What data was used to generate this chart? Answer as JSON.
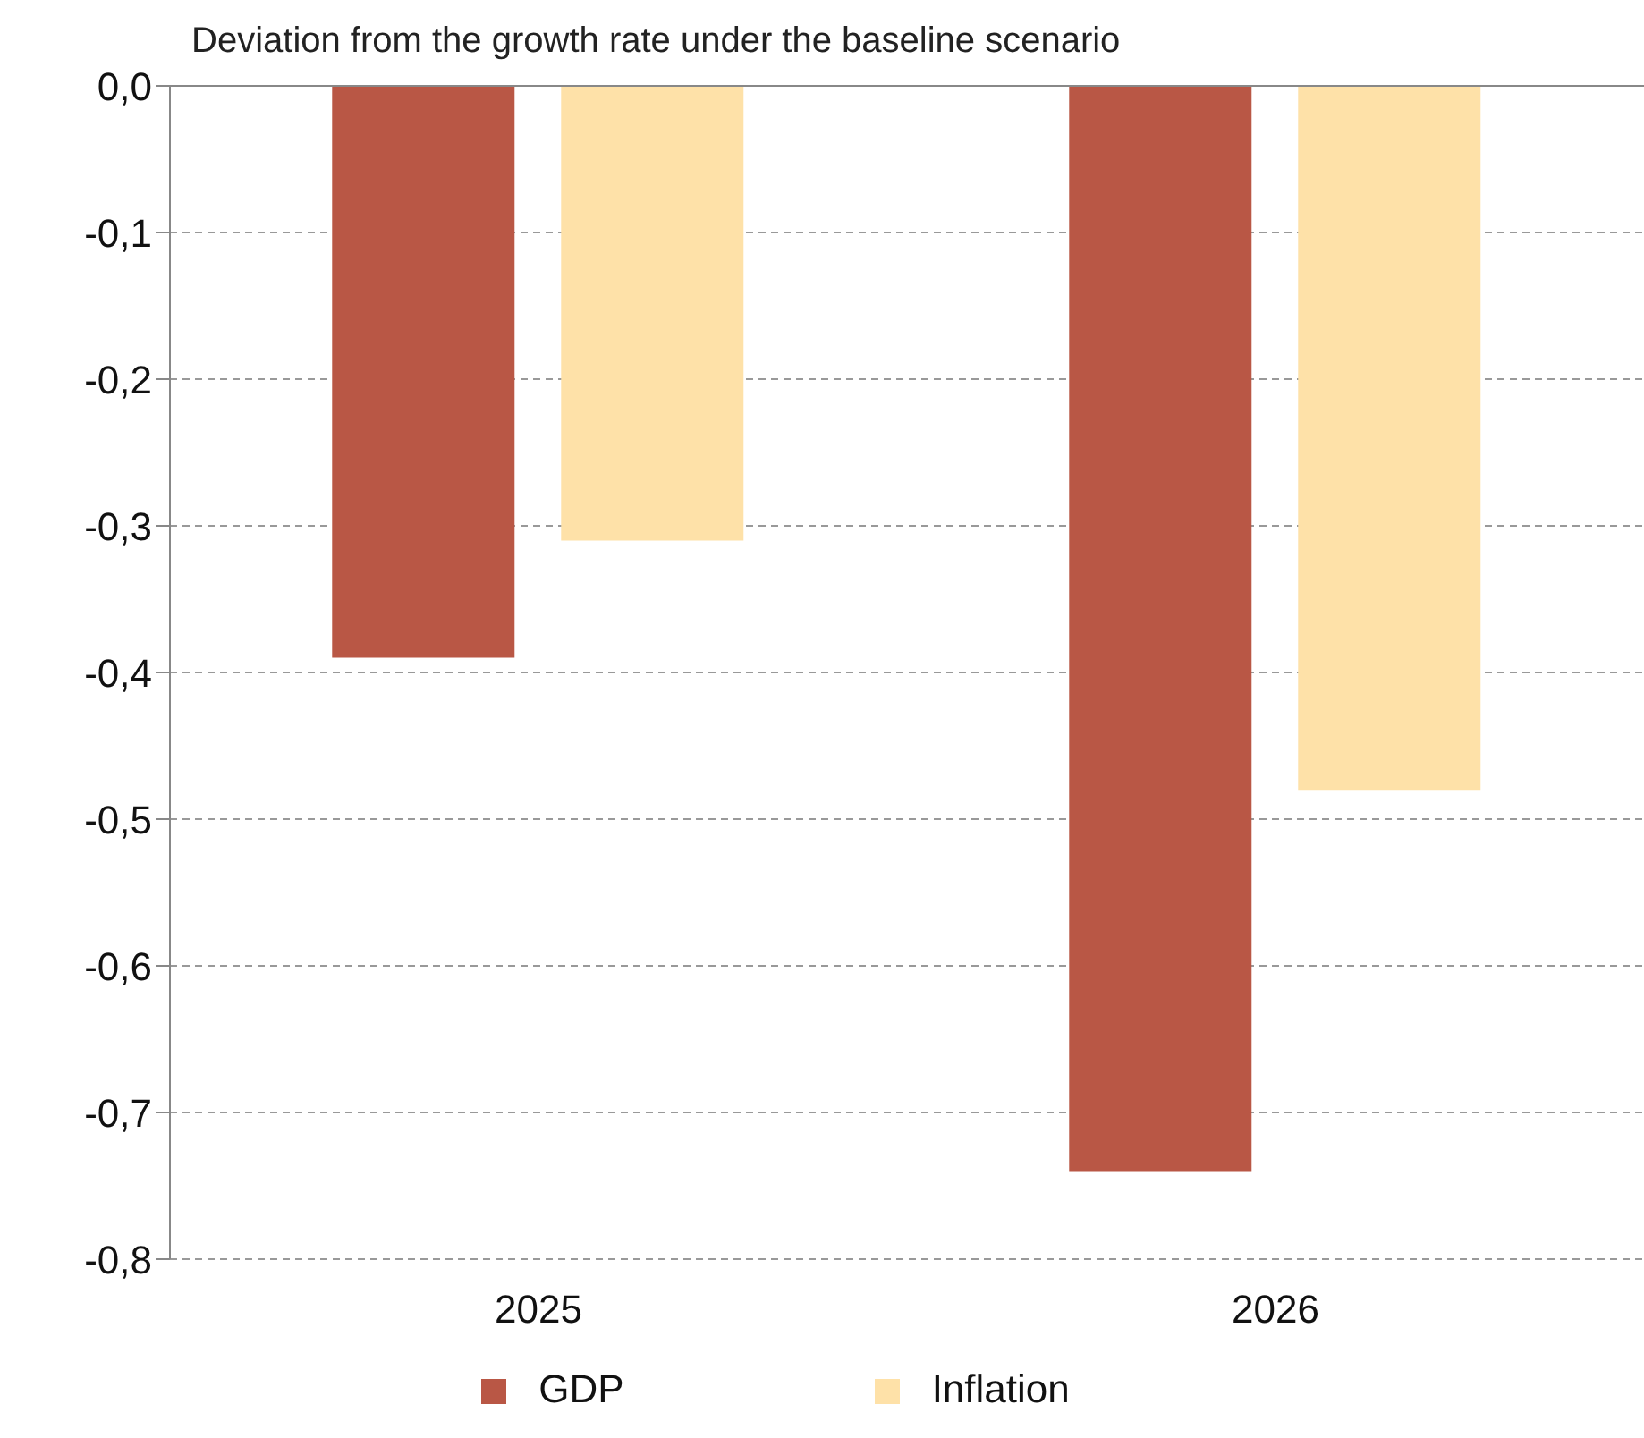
{
  "chart_data": {
    "type": "bar",
    "title": "Deviation from the growth rate under the baseline scenario",
    "categories": [
      "2025",
      "2026"
    ],
    "series": [
      {
        "name": "GDP",
        "color": "#b95745",
        "values": [
          -0.39,
          -0.74
        ]
      },
      {
        "name": "Inflation",
        "color": "#fee1a8",
        "values": [
          -0.31,
          -0.48
        ]
      }
    ],
    "ylim": [
      -0.8,
      0
    ],
    "yticks": [
      {
        "value": 0,
        "label": "0,0"
      },
      {
        "value": -0.1,
        "label": "-0,1"
      },
      {
        "value": -0.2,
        "label": "-0,2"
      },
      {
        "value": -0.3,
        "label": "-0,3"
      },
      {
        "value": -0.4,
        "label": "-0,4"
      },
      {
        "value": -0.5,
        "label": "-0,5"
      },
      {
        "value": -0.6,
        "label": "-0,6"
      },
      {
        "value": -0.7,
        "label": "-0,7"
      },
      {
        "value": -0.8,
        "label": "-0,8"
      }
    ],
    "grid": "y",
    "legend": "bottom"
  }
}
